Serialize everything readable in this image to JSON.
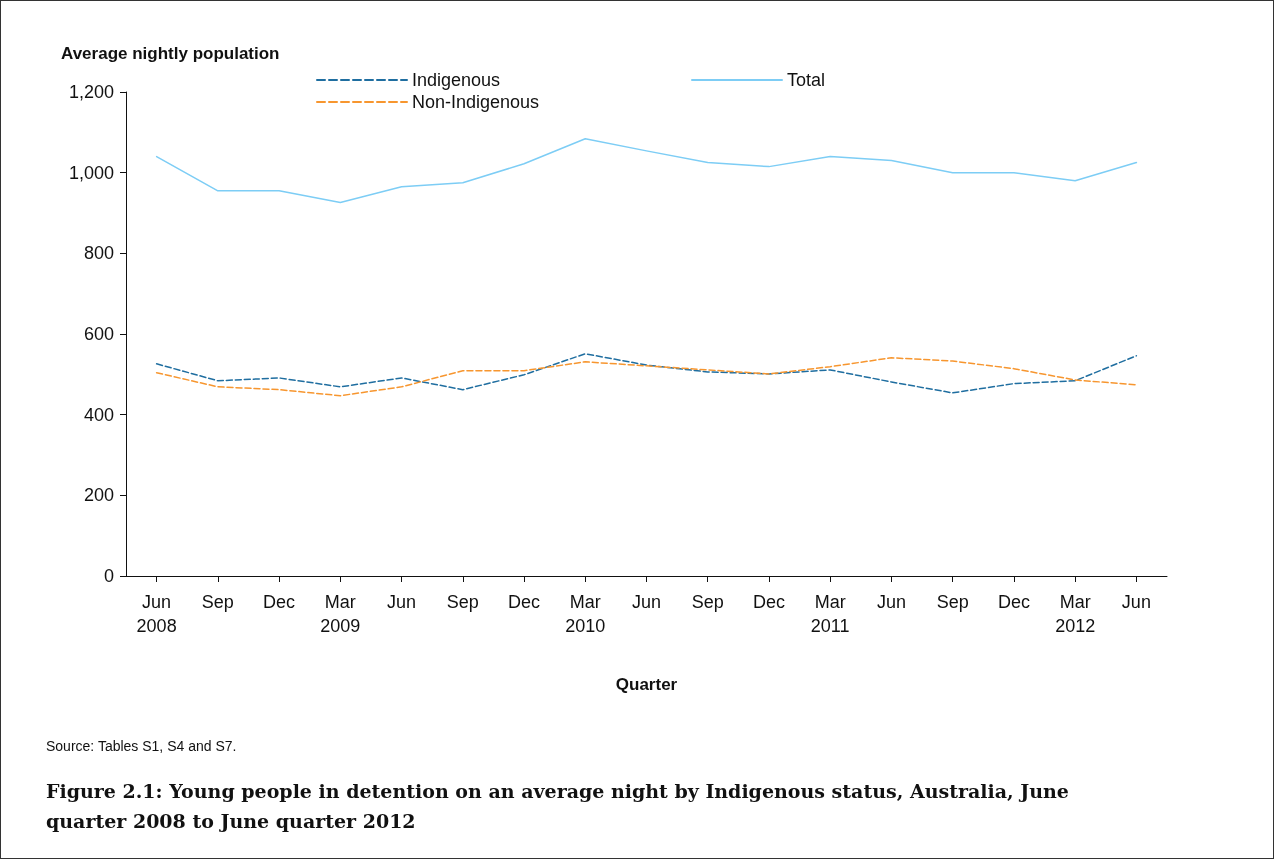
{
  "chart_data": {
    "type": "line",
    "title": "Figure 2.1: Young people in detention on an average night by Indigenous status, Australia, June quarter 2008 to June quarter 2012",
    "xlabel": "Quarter",
    "ylabel": "Average nightly population",
    "annotations": [
      "Source: Tables S1, S4 and S7."
    ],
    "categories": [
      "Jun\n2008",
      "Sep",
      "Dec",
      "Mar\n2009",
      "Jun",
      "Sep",
      "Dec",
      "Mar\n2010",
      "Jun",
      "Sep",
      "Dec",
      "Mar\n2011",
      "Jun",
      "Sep",
      "Dec",
      "Mar\n2012",
      "Jun"
    ],
    "series": [
      {
        "name": "Indigenous",
        "color": "#1f6ea0",
        "line_style": "dashed",
        "values": [
          526,
          484,
          491,
          469,
          491,
          462,
          499,
          551,
          523,
          506,
          501,
          511,
          481,
          454,
          477,
          484,
          546
        ]
      },
      {
        "name": "Total",
        "color": "#7dcdf5",
        "line_style": "solid",
        "values": [
          1040,
          955,
          955,
          926,
          965,
          975,
          1022,
          1084,
          1054,
          1025,
          1015,
          1040,
          1030,
          1000,
          1000,
          980,
          1025
        ]
      },
      {
        "name": "Non-Indigenous",
        "color": "#f7962f",
        "line_style": "dashed",
        "values": [
          504,
          469,
          462,
          447,
          469,
          509,
          509,
          531,
          521,
          511,
          501,
          519,
          541,
          533,
          514,
          486,
          474
        ]
      }
    ],
    "ylim": [
      0,
      1200
    ],
    "yticks": [
      0,
      200,
      400,
      600,
      800,
      {
        "value": 1000,
        "label": "1,000"
      },
      {
        "value": 1200,
        "label": "1,200"
      }
    ],
    "grid": false,
    "legend": "top",
    "marker": "none"
  }
}
